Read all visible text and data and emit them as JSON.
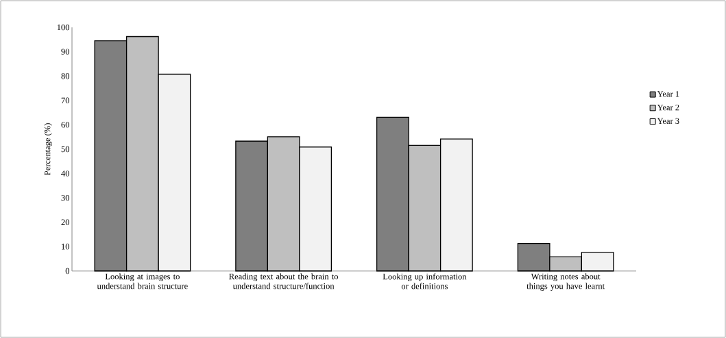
{
  "chart_data": {
    "type": "bar",
    "ylabel": "Percentage (%)",
    "categories": [
      "Looking at images to understand brain structure",
      "Reading text about the brain to understand structure/function",
      "Looking up information or definitions",
      "Writing notes about things you have learnt"
    ],
    "series": [
      {
        "name": "Year 1",
        "color": "#7f7f7f",
        "values": [
          94.5,
          53.3,
          63.1,
          11.3
        ]
      },
      {
        "name": "Year 2",
        "color": "#bfbfbf",
        "values": [
          96.2,
          55.1,
          51.6,
          5.8
        ]
      },
      {
        "name": "Year 3",
        "color": "#f2f2f2",
        "values": [
          80.8,
          50.9,
          54.2,
          7.6
        ]
      }
    ],
    "ylim": [
      0,
      100
    ],
    "yticks": [
      0,
      10,
      20,
      30,
      40,
      50,
      60,
      70,
      80,
      90,
      100
    ],
    "grid": false,
    "legend": "right"
  }
}
